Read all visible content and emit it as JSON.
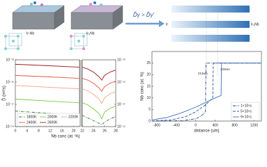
{
  "illustration": {
    "left_label": "Ir-Nb",
    "right_label": "Ir₃Nb",
    "arrow_label": "D̃γ > D̃γ′",
    "couple_left": "Ir",
    "couple_right": "Ir₃Nb"
  },
  "chart_data": [
    {
      "type": "line",
      "ylabel": "D̃ (m²/s)",
      "xlabel": "Nb conc (at. %)",
      "log": true,
      "xlim": [
        0,
        22
      ],
      "xticks": [
        0,
        4,
        8,
        12,
        16,
        20
      ],
      "ylim": [
        1e-19,
        1e-13
      ],
      "yticks": [
        {
          "value": 1e-19,
          "label": "10⁻¹⁹"
        },
        {
          "value": 1e-17,
          "label": "10⁻¹⁷"
        },
        {
          "value": 1e-15,
          "label": "10⁻¹⁵"
        },
        {
          "value": 1e-13,
          "label": "10⁻¹³"
        }
      ],
      "legend": "lower left",
      "series": [
        {
          "name": "1800K",
          "color": "#2e7d32",
          "linestyle": "dashdot",
          "x": [
            0,
            11,
            22
          ],
          "values": [
            2.5e-18,
            1.6e-18,
            1e-18
          ]
        },
        {
          "name": "2000K",
          "color": "#7ac943",
          "linestyle": "solid",
          "x": [
            0,
            11,
            22
          ],
          "values": [
            3e-17,
            2e-17,
            1.4e-17
          ]
        },
        {
          "name": "2200K",
          "color": "#f4a582",
          "linestyle": "solid",
          "x": [
            0,
            11,
            22
          ],
          "values": [
            5e-16,
            3.5e-16,
            2.5e-16
          ]
        },
        {
          "name": "2400K",
          "color": "#e8553f",
          "linestyle": "solid",
          "x": [
            0,
            11,
            22
          ],
          "values": [
            4e-15,
            3e-15,
            2.2e-15
          ]
        },
        {
          "name": "2600K",
          "color": "#9e1b1b",
          "linestyle": "solid",
          "x": [
            0,
            11,
            22
          ],
          "values": [
            4e-14,
            3e-14,
            2.2e-14
          ]
        }
      ]
    },
    {
      "type": "line",
      "log": true,
      "yside": "right",
      "xlim": [
        22,
        28
      ],
      "xticks": [
        22,
        24,
        26,
        28
      ],
      "ylim": [
        1e-19,
        1e-13
      ],
      "yticks": [
        {
          "value": 1e-19,
          "label": "10⁻¹⁹"
        },
        {
          "value": 1e-17,
          "label": "10⁻¹⁷"
        },
        {
          "value": 1e-15,
          "label": "10⁻¹⁵"
        },
        {
          "value": 1e-13,
          "label": "10⁻¹³"
        }
      ],
      "series": [
        {
          "color": "#2e7d32",
          "linestyle": "dashdot",
          "x": [
            22,
            23,
            24,
            25,
            25.5,
            26,
            27,
            28
          ],
          "values": [
            1e-18,
            6e-19,
            3.5e-19,
            2e-19,
            1.5e-19,
            2.5e-19,
            5e-19,
            8e-19
          ]
        },
        {
          "color": "#7ac943",
          "linestyle": "solid",
          "x": [
            22,
            23,
            24,
            25,
            25.5,
            26,
            27,
            28
          ],
          "values": [
            1.4e-17,
            9e-18,
            4e-18,
            1.5e-18,
            5e-19,
            2e-18,
            4.5e-18,
            7e-18
          ]
        },
        {
          "color": "#f4a582",
          "linestyle": "solid",
          "x": [
            22,
            23,
            24,
            25,
            25.5,
            26,
            27,
            28
          ],
          "values": [
            2.5e-16,
            1.6e-16,
            8e-17,
            3e-17,
            1.2e-17,
            4e-17,
            9e-17,
            1.4e-16
          ]
        },
        {
          "color": "#e8553f",
          "linestyle": "solid",
          "x": [
            22,
            23,
            24,
            25,
            25.5,
            26,
            27,
            28
          ],
          "values": [
            2.2e-15,
            1.5e-15,
            8e-16,
            3e-16,
            1.5e-16,
            4e-16,
            8e-16,
            1.2e-15
          ]
        },
        {
          "color": "#9e1b1b",
          "linestyle": "solid",
          "x": [
            22,
            23,
            24,
            25,
            25.5,
            26,
            27,
            28
          ],
          "values": [
            2.2e-14,
            1.5e-14,
            8e-15,
            3e-15,
            1.5e-15,
            4e-15,
            8e-15,
            1.2e-14
          ]
        }
      ]
    },
    {
      "type": "line",
      "ylabel": "Nb conc (at. %)",
      "xlabel": "distance (um)",
      "xlim": [
        -900,
        1350
      ],
      "xticks": [
        -800,
        -400,
        0,
        400,
        800,
        1200
      ],
      "ylim": [
        0,
        30
      ],
      "yticks": [
        0,
        5,
        10,
        15,
        20,
        25
      ],
      "legend": "lower right",
      "annotations": [
        "213um",
        "133um"
      ],
      "series": [
        {
          "name": "1×10⁵s",
          "color": "#1f3b73",
          "linestyle": "dashdot",
          "x": [
            -900,
            -300,
            0,
            100,
            200,
            210,
            1350
          ],
          "values": [
            0,
            0.1,
            1,
            2,
            4,
            25,
            25
          ]
        },
        {
          "name": "5×10⁵s",
          "color": "#2f5597",
          "linestyle": "dash",
          "x": [
            -900,
            -500,
            -200,
            0,
            200,
            350,
            360,
            1350
          ],
          "values": [
            0,
            0.5,
            2,
            4,
            7,
            10,
            25,
            25
          ]
        },
        {
          "name": "9×10⁵s",
          "color": "#3a6fc4",
          "linestyle": "solid",
          "x": [
            -900,
            -600,
            -300,
            0,
            200,
            400,
            520,
            530,
            1350
          ],
          "values": [
            0.5,
            1.5,
            3.5,
            6,
            8,
            10,
            11,
            25,
            25
          ]
        }
      ]
    }
  ]
}
